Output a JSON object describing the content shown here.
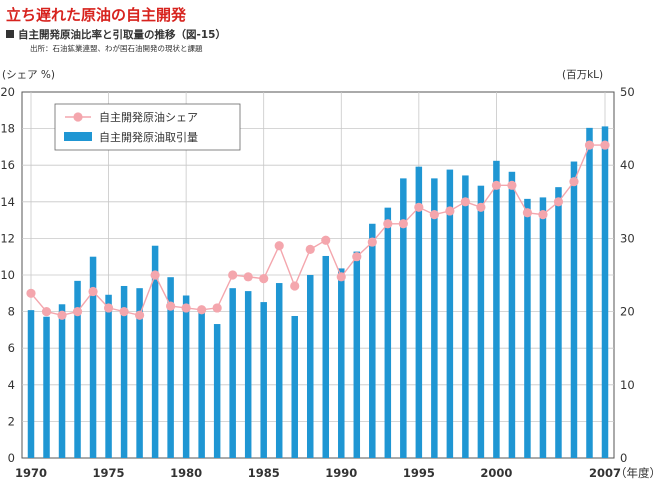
{
  "header": {
    "title": "立ち遅れた原油の自主開発",
    "subtitle": "自主開発原油比率と引取量の推移（図-15）",
    "source": "出所：石油鉱業連盟、わが国石油開発の現状と課題"
  },
  "colors": {
    "title": "#d7231e",
    "bar": "#1f96d3",
    "line": "#f4a6ad",
    "marker": "#f4a6ad",
    "grid": "#c8c8c8"
  },
  "chart_data": {
    "type": "bar",
    "x": [
      1970,
      1971,
      1972,
      1973,
      1974,
      1975,
      1976,
      1977,
      1978,
      1979,
      1980,
      1981,
      1982,
      1983,
      1984,
      1985,
      1986,
      1987,
      1988,
      1989,
      1990,
      1991,
      1992,
      1993,
      1994,
      1995,
      1996,
      1997,
      1998,
      1999,
      2000,
      2001,
      2002,
      2003,
      2004,
      2005,
      2006,
      2007
    ],
    "xticks": [
      "1970",
      "1975",
      "1980",
      "1985",
      "1990",
      "1995",
      "2000",
      "2007"
    ],
    "xtick_values": [
      1970,
      1975,
      1980,
      1985,
      1990,
      1995,
      2000,
      2007
    ],
    "xlabel": "（年度）",
    "left_axis": {
      "label": "(シェア %)",
      "ylim": [
        0,
        20
      ],
      "ticks": [
        "0",
        "2",
        "4",
        "6",
        "8",
        "10",
        "12",
        "14",
        "16",
        "18",
        "20"
      ]
    },
    "right_axis": {
      "label": "(百万kL)",
      "ylim": [
        0,
        50
      ],
      "ticks": [
        "0",
        "10",
        "20",
        "30",
        "40",
        "50"
      ]
    },
    "grid": true,
    "legend_position": "top-left",
    "series": [
      {
        "name": "自主開発原油シェア",
        "type": "line",
        "axis": "left",
        "values": [
          9.0,
          8.0,
          7.8,
          8.0,
          9.1,
          8.2,
          8.0,
          7.8,
          10.0,
          8.3,
          8.2,
          8.1,
          8.2,
          10.0,
          9.9,
          9.8,
          11.6,
          9.4,
          11.4,
          11.9,
          9.9,
          11.0,
          11.8,
          12.8,
          12.8,
          13.7,
          13.3,
          13.5,
          14.0,
          13.7,
          14.9,
          14.9,
          13.4,
          13.3,
          14.0,
          15.1,
          17.1,
          17.1
        ]
      },
      {
        "name": "自主開発原油取引量",
        "type": "bar",
        "axis": "right",
        "values": [
          20.2,
          19.3,
          21.0,
          24.2,
          27.5,
          22.3,
          23.5,
          23.2,
          29.0,
          24.7,
          22.2,
          20.2,
          18.3,
          23.2,
          22.8,
          21.3,
          23.9,
          19.4,
          25.0,
          27.6,
          25.9,
          28.2,
          32.0,
          34.2,
          38.2,
          39.8,
          38.2,
          39.4,
          38.6,
          37.2,
          40.6,
          39.1,
          35.4,
          35.6,
          37.0,
          40.5,
          45.1,
          45.3
        ]
      }
    ]
  }
}
